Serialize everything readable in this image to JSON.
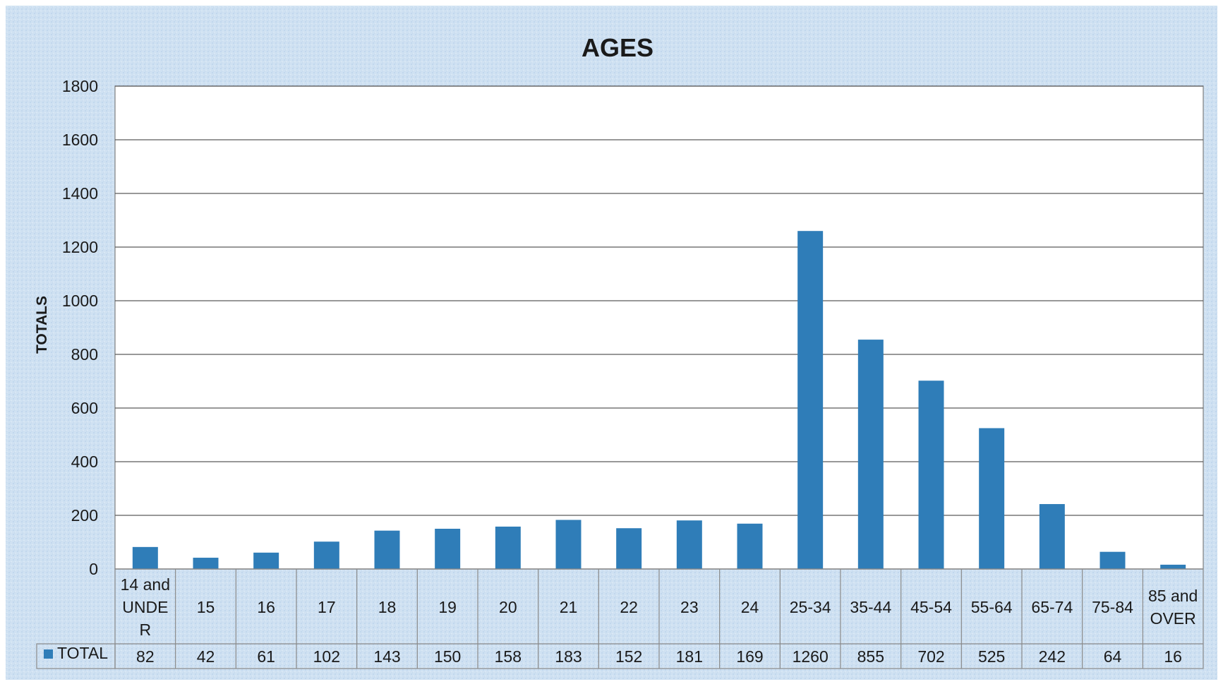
{
  "chart_data": {
    "type": "bar",
    "title": "AGES",
    "ylabel": "TOTALS",
    "xlabel": "",
    "ylim": [
      0,
      1800
    ],
    "y_ticks": [
      0,
      200,
      400,
      600,
      800,
      1000,
      1200,
      1400,
      1600,
      1800
    ],
    "grid": true,
    "data_table": true,
    "categories": [
      [
        "14 and",
        "UNDE",
        "R"
      ],
      [
        "15"
      ],
      [
        "16"
      ],
      [
        "17"
      ],
      [
        "18"
      ],
      [
        "19"
      ],
      [
        "20"
      ],
      [
        "21"
      ],
      [
        "22"
      ],
      [
        "23"
      ],
      [
        "24"
      ],
      [
        "25-34"
      ],
      [
        "35-44"
      ],
      [
        "45-54"
      ],
      [
        "55-64"
      ],
      [
        "65-74"
      ],
      [
        "75-84"
      ],
      [
        "85 and",
        "OVER"
      ]
    ],
    "series": [
      {
        "name": "TOTAL",
        "color": "#2F7DB8",
        "values": [
          82,
          42,
          61,
          102,
          143,
          150,
          158,
          183,
          152,
          181,
          169,
          1260,
          855,
          702,
          525,
          242,
          64,
          16
        ]
      }
    ]
  },
  "colors": {
    "frame_bg": "#C9DDF0",
    "plot_bg": "#FFFFFF",
    "grid": "#5A5A5A",
    "bar": "#2F7DB8",
    "text": "#1A1A1A"
  }
}
